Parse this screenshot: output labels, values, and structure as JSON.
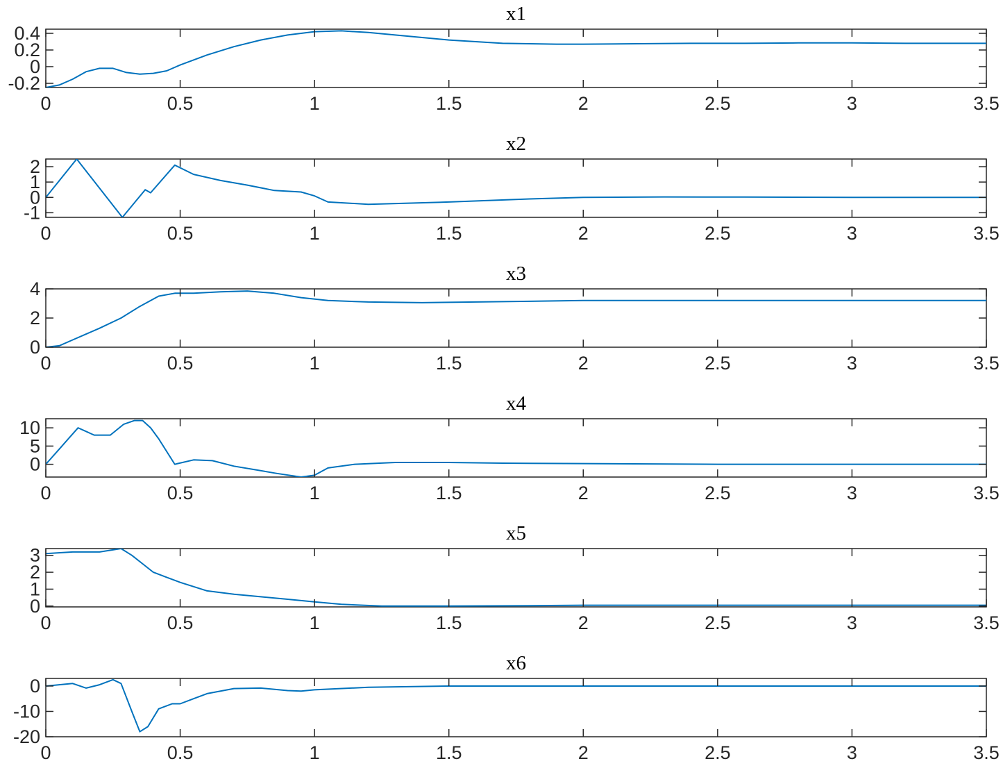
{
  "colors": {
    "line": "#0072BD",
    "axes": "#262626",
    "background": "#ffffff"
  },
  "chart_data": [
    {
      "type": "line",
      "title": "x1",
      "xlim": [
        0,
        3.5
      ],
      "ylim": [
        -0.25,
        0.45
      ],
      "xticks": [
        0,
        0.5,
        1,
        1.5,
        2,
        2.5,
        3,
        3.5
      ],
      "xtick_labels": [
        "0",
        "0.5",
        "1",
        "1.5",
        "2",
        "2.5",
        "3",
        "3.5"
      ],
      "yticks": [
        -0.2,
        0,
        0.2,
        0.4
      ],
      "ytick_labels": [
        "-0.2",
        "0",
        "0.2",
        "0.4"
      ],
      "series": [
        {
          "x": [
            0,
            0.05,
            0.1,
            0.15,
            0.2,
            0.25,
            0.3,
            0.35,
            0.4,
            0.45,
            0.5,
            0.6,
            0.7,
            0.8,
            0.9,
            1.0,
            1.1,
            1.2,
            1.3,
            1.4,
            1.5,
            1.6,
            1.7,
            1.8,
            1.9,
            2.0,
            2.2,
            2.4,
            2.6,
            2.8,
            3.0,
            3.2,
            3.5
          ],
          "y": [
            -0.25,
            -0.22,
            -0.15,
            -0.06,
            -0.02,
            -0.02,
            -0.07,
            -0.09,
            -0.08,
            -0.05,
            0.02,
            0.14,
            0.24,
            0.32,
            0.38,
            0.42,
            0.43,
            0.41,
            0.38,
            0.35,
            0.32,
            0.3,
            0.28,
            0.275,
            0.27,
            0.27,
            0.275,
            0.28,
            0.28,
            0.285,
            0.285,
            0.28,
            0.28
          ]
        }
      ]
    },
    {
      "type": "line",
      "title": "x2",
      "xlim": [
        0,
        3.5
      ],
      "ylim": [
        -1.3,
        2.5
      ],
      "xticks": [
        0,
        0.5,
        1,
        1.5,
        2,
        2.5,
        3,
        3.5
      ],
      "xtick_labels": [
        "0",
        "0.5",
        "1",
        "1.5",
        "2",
        "2.5",
        "3",
        "3.5"
      ],
      "yticks": [
        -1,
        0,
        1,
        2
      ],
      "ytick_labels": [
        "-1",
        "0",
        "1",
        "2"
      ],
      "series": [
        {
          "x": [
            0,
            0.115,
            0.285,
            0.37,
            0.39,
            0.48,
            0.55,
            0.65,
            0.75,
            0.85,
            0.95,
            1.0,
            1.05,
            1.2,
            1.5,
            1.8,
            2.0,
            2.3,
            2.6,
            3.0,
            3.5
          ],
          "y": [
            0,
            2.5,
            -1.3,
            0.5,
            0.3,
            2.1,
            1.5,
            1.1,
            0.8,
            0.45,
            0.35,
            0.1,
            -0.3,
            -0.45,
            -0.3,
            -0.1,
            0,
            0.03,
            0.02,
            0,
            0
          ]
        }
      ]
    },
    {
      "type": "line",
      "title": "x3",
      "xlim": [
        0,
        3.5
      ],
      "ylim": [
        0,
        4
      ],
      "xticks": [
        0,
        0.5,
        1,
        1.5,
        2,
        2.5,
        3,
        3.5
      ],
      "xtick_labels": [
        "0",
        "0.5",
        "1",
        "1.5",
        "2",
        "2.5",
        "3",
        "3.5"
      ],
      "yticks": [
        0,
        2,
        4
      ],
      "ytick_labels": [
        "0",
        "2",
        "4"
      ],
      "series": [
        {
          "x": [
            0,
            0.05,
            0.1,
            0.15,
            0.2,
            0.28,
            0.35,
            0.42,
            0.48,
            0.55,
            0.65,
            0.75,
            0.85,
            0.95,
            1.05,
            1.2,
            1.4,
            1.6,
            1.8,
            2.0,
            2.5,
            3.0,
            3.5
          ],
          "y": [
            0,
            0.1,
            0.5,
            0.9,
            1.3,
            2.0,
            2.8,
            3.5,
            3.7,
            3.7,
            3.8,
            3.85,
            3.7,
            3.4,
            3.2,
            3.1,
            3.05,
            3.1,
            3.15,
            3.2,
            3.2,
            3.2,
            3.2
          ]
        }
      ]
    },
    {
      "type": "line",
      "title": "x4",
      "xlim": [
        0,
        3.5
      ],
      "ylim": [
        -3.5,
        12.5
      ],
      "xticks": [
        0,
        0.5,
        1,
        1.5,
        2,
        2.5,
        3,
        3.5
      ],
      "xtick_labels": [
        "0",
        "0.5",
        "1",
        "1.5",
        "2",
        "2.5",
        "3",
        "3.5"
      ],
      "yticks": [
        0,
        5,
        10
      ],
      "ytick_labels": [
        "0",
        "5",
        "10"
      ],
      "series": [
        {
          "x": [
            0,
            0.06,
            0.12,
            0.18,
            0.24,
            0.29,
            0.33,
            0.36,
            0.39,
            0.42,
            0.48,
            0.55,
            0.62,
            0.7,
            0.78,
            0.86,
            0.95,
            1.0,
            1.05,
            1.15,
            1.3,
            1.5,
            1.7,
            2.0,
            2.5,
            3.0,
            3.5
          ],
          "y": [
            0,
            5,
            10,
            8,
            8,
            11,
            12,
            12,
            10,
            7,
            0,
            1.2,
            1,
            -0.5,
            -1.5,
            -2.5,
            -3.5,
            -3,
            -1,
            0,
            0.5,
            0.5,
            0.3,
            0.2,
            0,
            0,
            0
          ]
        }
      ]
    },
    {
      "type": "line",
      "title": "x5",
      "xlim": [
        0,
        3.5
      ],
      "ylim": [
        -0.05,
        3.4
      ],
      "xticks": [
        0,
        0.5,
        1,
        1.5,
        2,
        2.5,
        3,
        3.5
      ],
      "xtick_labels": [
        "0",
        "0.5",
        "1",
        "1.5",
        "2",
        "2.5",
        "3",
        "3.5"
      ],
      "yticks": [
        0,
        1,
        2,
        3
      ],
      "ytick_labels": [
        "0",
        "1",
        "2",
        "3"
      ],
      "series": [
        {
          "x": [
            0,
            0.1,
            0.2,
            0.28,
            0.32,
            0.36,
            0.4,
            0.45,
            0.5,
            0.6,
            0.7,
            0.8,
            0.9,
            1.0,
            1.1,
            1.25,
            1.5,
            1.8,
            2.0,
            2.5,
            3.0,
            3.5
          ],
          "y": [
            3.1,
            3.2,
            3.2,
            3.4,
            3.0,
            2.5,
            2.0,
            1.7,
            1.4,
            0.9,
            0.7,
            0.55,
            0.4,
            0.25,
            0.1,
            0,
            0,
            0.02,
            0.05,
            0.05,
            0.05,
            0.05
          ]
        }
      ]
    },
    {
      "type": "line",
      "title": "x6",
      "xlim": [
        0,
        3.5
      ],
      "ylim": [
        -20,
        3
      ],
      "xticks": [
        0,
        0.5,
        1,
        1.5,
        2,
        2.5,
        3,
        3.5
      ],
      "xtick_labels": [
        "0",
        "0.5",
        "1",
        "1.5",
        "2",
        "2.5",
        "3",
        "3.5"
      ],
      "yticks": [
        -20,
        -10,
        0
      ],
      "ytick_labels": [
        "-20",
        "-10",
        "0"
      ],
      "series": [
        {
          "x": [
            0,
            0.05,
            0.1,
            0.15,
            0.2,
            0.25,
            0.28,
            0.32,
            0.35,
            0.38,
            0.42,
            0.47,
            0.5,
            0.55,
            0.6,
            0.7,
            0.8,
            0.9,
            0.95,
            1.0,
            1.2,
            1.5,
            1.7,
            2.0,
            2.5,
            3.0,
            3.5
          ],
          "y": [
            0,
            0.5,
            1,
            -0.8,
            0.5,
            2.5,
            1,
            -10,
            -18,
            -16,
            -9,
            -7,
            -7,
            -5,
            -3,
            -1,
            -0.8,
            -1.8,
            -2,
            -1.5,
            -0.5,
            0,
            0,
            0,
            0,
            0,
            0
          ]
        }
      ]
    }
  ]
}
